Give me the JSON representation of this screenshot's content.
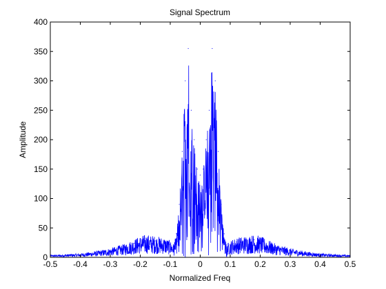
{
  "chart_data": {
    "type": "line",
    "title": "Signal Spectrum",
    "xlabel": "Normalized Freq",
    "ylabel": "Amplitude",
    "xlim": [
      -0.5,
      0.5
    ],
    "ylim": [
      0,
      400
    ],
    "grid": false,
    "legend": "none",
    "x_ticks": [
      "-0.5",
      "-0.4",
      "-0.3",
      "-0.2",
      "-0.1",
      "0",
      "0.1",
      "0.2",
      "0.3",
      "0.4",
      "0.5"
    ],
    "y_ticks": [
      "0",
      "50",
      "100",
      "150",
      "200",
      "250",
      "300",
      "350",
      "400"
    ],
    "series_color": "#0000ff",
    "series": [
      {
        "x": [
          -0.5,
          -0.45,
          -0.4,
          -0.35,
          -0.3,
          -0.25,
          -0.22,
          -0.2,
          -0.18,
          -0.15,
          -0.12,
          -0.1,
          -0.09,
          -0.08,
          -0.07,
          -0.06,
          -0.05,
          -0.04,
          -0.03,
          -0.02,
          -0.01,
          0,
          0.01,
          0.02,
          0.03,
          0.04,
          0.05,
          0.06,
          0.07,
          0.08,
          0.09,
          0.1,
          0.12,
          0.15,
          0.18,
          0.2,
          0.22,
          0.25,
          0.3,
          0.35,
          0.4,
          0.45,
          0.5
        ],
        "values": [
          3,
          4,
          5,
          8,
          12,
          18,
          24,
          28,
          30,
          28,
          26,
          22,
          18,
          40,
          90,
          180,
          300,
          355,
          250,
          200,
          150,
          140,
          150,
          200,
          250,
          355,
          300,
          180,
          90,
          40,
          18,
          22,
          26,
          28,
          30,
          28,
          24,
          18,
          12,
          8,
          5,
          4,
          3
        ]
      }
    ]
  }
}
